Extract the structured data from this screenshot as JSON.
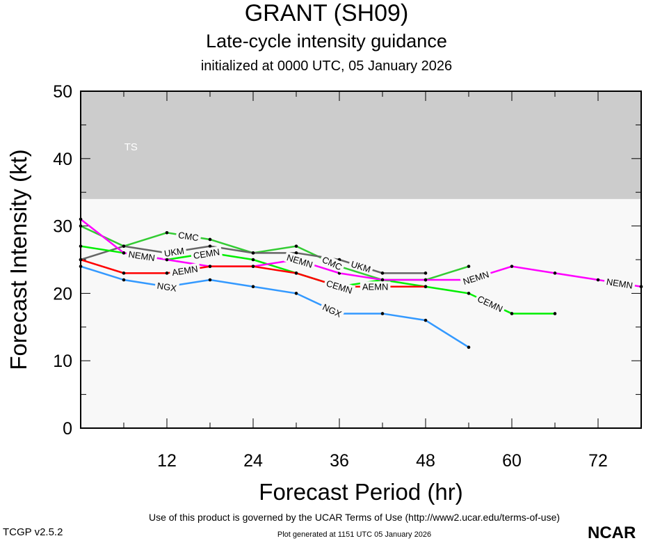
{
  "chart_data": {
    "type": "line",
    "title": "GRANT (SH09)",
    "subtitle": "Late-cycle intensity guidance",
    "init": "initialized at 0000 UTC, 05 January 2026",
    "xlabel": "Forecast Period (hr)",
    "ylabel": "Forecast Intensity (kt)",
    "xlim": [
      0,
      78
    ],
    "ylim": [
      0,
      50
    ],
    "xticks": [
      12,
      24,
      36,
      48,
      60,
      72
    ],
    "yticks": [
      0,
      10,
      20,
      30,
      40,
      50
    ],
    "band": {
      "label": "TS",
      "from": 34,
      "to": 50,
      "color": "#cccccc"
    },
    "series": [
      {
        "name": "CMC",
        "color": "#33cc33",
        "x": [
          0,
          6,
          12,
          18,
          24,
          30,
          36,
          42,
          48,
          54
        ],
        "values": [
          30,
          27,
          29,
          28,
          26,
          27,
          24,
          22,
          22,
          24
        ],
        "labels_at": [
          15,
          35
        ]
      },
      {
        "name": "UKM",
        "color": "#666666",
        "x": [
          0,
          6,
          12,
          18,
          24,
          30,
          36,
          42,
          48
        ],
        "values": [
          25,
          27,
          26,
          27,
          26,
          26,
          25,
          23,
          23
        ],
        "labels_at": [
          15,
          36
        ]
      },
      {
        "name": "CEMN",
        "color": "#00ee00",
        "x": [
          0,
          6,
          12,
          18,
          24,
          30,
          36,
          42,
          48,
          54,
          60,
          66
        ],
        "values": [
          27,
          26,
          25,
          26,
          25,
          23,
          21,
          22,
          21,
          20,
          17,
          17
        ],
        "labels_at": [
          16,
          36,
          57
        ]
      },
      {
        "name": "NEMN",
        "color": "#ff00ff",
        "x": [
          0,
          6,
          12,
          18,
          24,
          30,
          36,
          42,
          48,
          54,
          60,
          66,
          72,
          78
        ],
        "values": [
          31,
          26,
          25,
          24,
          24,
          25,
          23,
          22,
          22,
          22,
          24,
          23,
          22,
          21
        ],
        "labels_at": [
          15,
          35,
          55,
          75
        ]
      },
      {
        "name": "AEMN",
        "color": "#ff0000",
        "x": [
          0,
          6,
          12,
          18,
          24,
          30,
          36,
          42,
          48
        ],
        "values": [
          25,
          23,
          23,
          24,
          24,
          23,
          21,
          21,
          21
        ],
        "labels_at": [
          16,
          36
        ]
      },
      {
        "name": "NGX",
        "color": "#3399ff",
        "x": [
          0,
          6,
          12,
          18,
          24,
          30,
          36,
          42,
          48,
          54
        ],
        "values": [
          24,
          22,
          21,
          22,
          21,
          20,
          17,
          17,
          16,
          12
        ],
        "labels_at": [
          15,
          35
        ]
      }
    ]
  },
  "footer": {
    "terms": "Use of this product is governed by the UCAR Terms of Use (http://www2.ucar.edu/terms-of-use)",
    "generated": "Plot generated at 1151 UTC   05 January 2026",
    "version": "TCGP v2.5.2",
    "logo": "NCAR"
  }
}
